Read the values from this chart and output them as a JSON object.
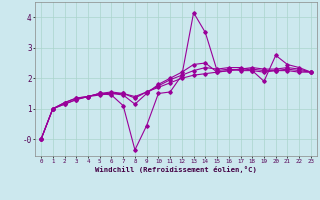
{
  "xlabel": "Windchill (Refroidissement éolien,°C)",
  "bg_color": "#cce8ee",
  "line_color": "#990099",
  "grid_color": "#aad4cc",
  "x_ticks": [
    0,
    1,
    2,
    3,
    4,
    5,
    6,
    7,
    8,
    9,
    10,
    11,
    12,
    13,
    14,
    15,
    16,
    17,
    18,
    19,
    20,
    21,
    22,
    23
  ],
  "y_ticks": [
    0,
    1,
    2,
    3,
    4
  ],
  "y_tick_labels": [
    "-0",
    "1",
    "2",
    "3",
    "4"
  ],
  "ylim": [
    -0.55,
    4.5
  ],
  "xlim": [
    -0.5,
    23.5
  ],
  "series": [
    [
      0.0,
      1.0,
      1.2,
      1.35,
      1.4,
      1.5,
      1.45,
      1.1,
      -0.35,
      0.45,
      1.5,
      1.55,
      2.1,
      4.15,
      3.5,
      2.25,
      2.3,
      2.25,
      2.25,
      1.9,
      2.75,
      2.45,
      2.35,
      2.2
    ],
    [
      0.0,
      1.0,
      1.2,
      1.35,
      1.4,
      1.5,
      1.5,
      1.45,
      1.15,
      1.5,
      1.8,
      2.0,
      2.2,
      2.45,
      2.5,
      2.2,
      2.25,
      2.3,
      2.35,
      2.3,
      2.3,
      2.35,
      2.3,
      2.2
    ],
    [
      0.0,
      1.0,
      1.15,
      1.3,
      1.4,
      1.5,
      1.55,
      1.5,
      1.35,
      1.55,
      1.75,
      1.95,
      2.1,
      2.25,
      2.35,
      2.3,
      2.35,
      2.35,
      2.25,
      2.2,
      2.25,
      2.3,
      2.25,
      2.2
    ],
    [
      0.0,
      1.0,
      1.15,
      1.3,
      1.4,
      1.45,
      1.5,
      1.5,
      1.4,
      1.55,
      1.7,
      1.85,
      2.0,
      2.1,
      2.15,
      2.2,
      2.25,
      2.3,
      2.3,
      2.25,
      2.25,
      2.25,
      2.2,
      2.2
    ]
  ]
}
